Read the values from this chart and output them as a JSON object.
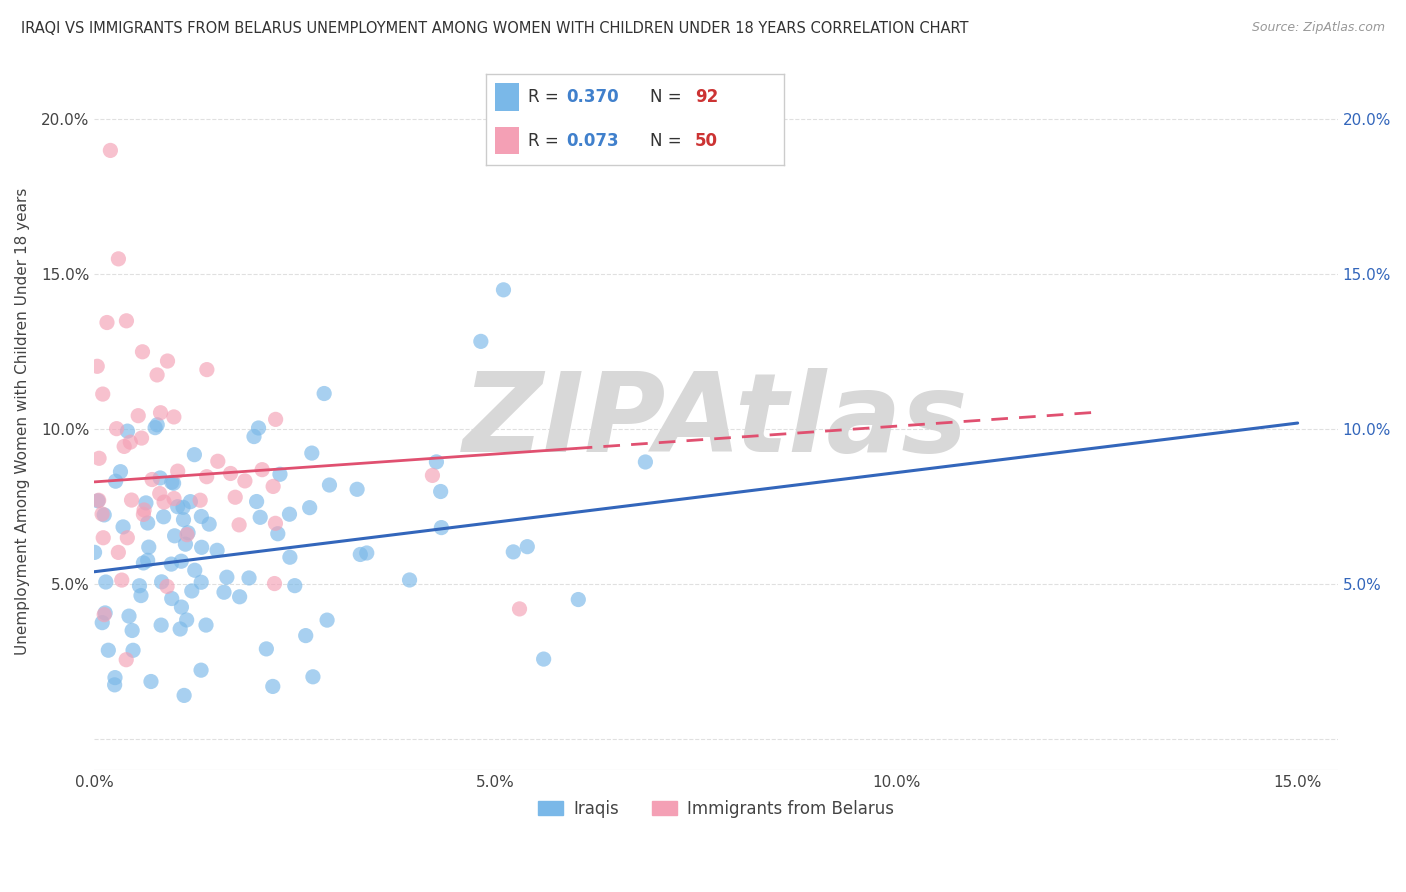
{
  "title": "IRAQI VS IMMIGRANTS FROM BELARUS UNEMPLOYMENT AMONG WOMEN WITH CHILDREN UNDER 18 YEARS CORRELATION CHART",
  "source": "Source: ZipAtlas.com",
  "ylabel": "Unemployment Among Women with Children Under 18 years",
  "xlim": [
    0.0,
    0.155
  ],
  "ylim": [
    -0.01,
    0.215
  ],
  "xticks": [
    0.0,
    0.05,
    0.1,
    0.15
  ],
  "xticklabels": [
    "0.0%",
    "5.0%",
    "10.0%",
    "15.0%"
  ],
  "yticks": [
    0.0,
    0.05,
    0.1,
    0.15,
    0.2
  ],
  "yticklabels": [
    "",
    "5.0%",
    "10.0%",
    "15.0%",
    "20.0%"
  ],
  "series1_label": "Iraqis",
  "series1_color": "#7ab8e8",
  "series1_R": 0.37,
  "series1_N": 92,
  "series2_label": "Immigrants from Belarus",
  "series2_color": "#f4a0b5",
  "series2_R": 0.073,
  "series2_N": 50,
  "legend_R_color": "#4080cc",
  "legend_N_color": "#cc3333",
  "line1_color": "#3366bb",
  "line2_color": "#e05070",
  "watermark": "ZIPAtlas",
  "watermark_color": "#d8d8d8",
  "bg_color": "#ffffff",
  "grid_color": "#e0e0e0",
  "title_fontsize": 10.5,
  "axis_label_fontsize": 11,
  "tick_fontsize": 11,
  "right_tick_color": "#3366bb"
}
